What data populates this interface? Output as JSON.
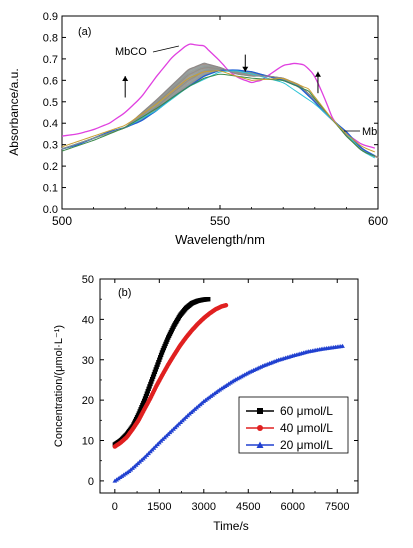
{
  "chart_data": [
    {
      "type": "line",
      "panel_label": "(a)",
      "xlabel": "Wavelength/nm",
      "ylabel": "Absorbance/a.u.",
      "xlim": [
        500,
        600
      ],
      "ylim": [
        0.0,
        0.9
      ],
      "x_ticks": [
        "500",
        "550",
        "600"
      ],
      "y_ticks": [
        "0.0",
        "0.1",
        "0.2",
        "0.3",
        "0.4",
        "0.5",
        "0.6",
        "0.7",
        "0.8",
        "0.9"
      ],
      "grid": false,
      "annotations": {
        "mbco_label": "MbCO",
        "mb_label": "Mb",
        "arrows": [
          {
            "x": 520,
            "y_from": 0.52,
            "y_to": 0.62,
            "direction": "up"
          },
          {
            "x": 558,
            "y_from": 0.72,
            "y_to": 0.64,
            "direction": "down"
          },
          {
            "x": 581,
            "y_from": 0.54,
            "y_to": 0.64,
            "direction": "up"
          }
        ]
      },
      "series": [
        {
          "name": "MbCO",
          "color": "#e040e0",
          "points": [
            [
              500,
              0.34
            ],
            [
              505,
              0.35
            ],
            [
              510,
              0.37
            ],
            [
              515,
              0.4
            ],
            [
              520,
              0.45
            ],
            [
              525,
              0.52
            ],
            [
              530,
              0.62
            ],
            [
              535,
              0.71
            ],
            [
              540,
              0.77
            ],
            [
              545,
              0.76
            ],
            [
              550,
              0.69
            ],
            [
              553,
              0.64
            ],
            [
              556,
              0.61
            ],
            [
              560,
              0.59
            ],
            [
              563,
              0.6
            ],
            [
              566,
              0.63
            ],
            [
              570,
              0.67
            ],
            [
              574,
              0.68
            ],
            [
              577,
              0.67
            ],
            [
              580,
              0.62
            ],
            [
              583,
              0.52
            ],
            [
              586,
              0.41
            ],
            [
              590,
              0.35
            ],
            [
              595,
              0.3
            ],
            [
              600,
              0.28
            ]
          ]
        },
        {
          "name": "Mb",
          "color": "#1e5fd6",
          "points": [
            [
              500,
              0.28
            ],
            [
              505,
              0.3
            ],
            [
              510,
              0.33
            ],
            [
              515,
              0.36
            ],
            [
              520,
              0.38
            ],
            [
              525,
              0.41
            ],
            [
              530,
              0.46
            ],
            [
              535,
              0.52
            ],
            [
              540,
              0.57
            ],
            [
              545,
              0.62
            ],
            [
              550,
              0.647
            ],
            [
              555,
              0.648
            ],
            [
              560,
              0.64
            ],
            [
              565,
              0.62
            ],
            [
              570,
              0.6
            ],
            [
              575,
              0.57
            ],
            [
              580,
              0.5
            ],
            [
              583,
              0.45
            ],
            [
              586,
              0.41
            ],
            [
              590,
              0.36
            ],
            [
              595,
              0.28
            ],
            [
              600,
              0.24
            ]
          ]
        },
        {
          "name": "",
          "color": "#2ec4d6",
          "points": [
            [
              500,
              0.28
            ],
            [
              510,
              0.33
            ],
            [
              520,
              0.38
            ],
            [
              530,
              0.46
            ],
            [
              540,
              0.57
            ],
            [
              550,
              0.64
            ],
            [
              555,
              0.645
            ],
            [
              560,
              0.63
            ],
            [
              570,
              0.59
            ],
            [
              580,
              0.49
            ],
            [
              586,
              0.41
            ],
            [
              590,
              0.35
            ],
            [
              595,
              0.27
            ],
            [
              600,
              0.23
            ]
          ]
        },
        {
          "name": "",
          "color": "#8a8a8a",
          "points": [
            [
              500,
              0.28
            ],
            [
              510,
              0.33
            ],
            [
              520,
              0.38
            ],
            [
              530,
              0.51
            ],
            [
              540,
              0.65
            ],
            [
              545,
              0.68
            ],
            [
              550,
              0.66
            ],
            [
              555,
              0.63
            ],
            [
              560,
              0.62
            ],
            [
              565,
              0.62
            ],
            [
              570,
              0.61
            ],
            [
              575,
              0.58
            ],
            [
              580,
              0.51
            ],
            [
              586,
              0.41
            ],
            [
              590,
              0.34
            ],
            [
              595,
              0.27
            ],
            [
              600,
              0.24
            ]
          ]
        },
        {
          "name": "",
          "color": "#3a8a4a",
          "points": [
            [
              500,
              0.27
            ],
            [
              510,
              0.32
            ],
            [
              520,
              0.38
            ],
            [
              530,
              0.47
            ],
            [
              540,
              0.57
            ],
            [
              545,
              0.61
            ],
            [
              550,
              0.63
            ],
            [
              555,
              0.62
            ],
            [
              560,
              0.61
            ],
            [
              570,
              0.6
            ],
            [
              578,
              0.55
            ],
            [
              586,
              0.41
            ],
            [
              590,
              0.34
            ],
            [
              595,
              0.27
            ],
            [
              600,
              0.24
            ]
          ]
        },
        {
          "name": "",
          "color": "#c9a032",
          "points": [
            [
              500,
              0.29
            ],
            [
              510,
              0.34
            ],
            [
              520,
              0.39
            ],
            [
              530,
              0.49
            ],
            [
              540,
              0.61
            ],
            [
              545,
              0.64
            ],
            [
              550,
              0.645
            ],
            [
              555,
              0.62
            ],
            [
              560,
              0.6
            ],
            [
              570,
              0.61
            ],
            [
              578,
              0.56
            ],
            [
              586,
              0.41
            ],
            [
              590,
              0.35
            ],
            [
              595,
              0.29
            ],
            [
              600,
              0.26
            ]
          ]
        }
      ]
    },
    {
      "type": "scatter",
      "panel_label": "(b)",
      "xlabel": "Time/s",
      "ylabel": "Concentration/(μmol·L⁻¹)",
      "xlim": [
        -500,
        8200
      ],
      "ylim": [
        -3,
        50
      ],
      "x_ticks": [
        "0",
        "1500",
        "3000",
        "4500",
        "6000",
        "7500"
      ],
      "y_ticks": [
        "0",
        "10",
        "20",
        "30",
        "40",
        "50"
      ],
      "grid": false,
      "legend_position": "lower-right",
      "series": [
        {
          "name": "60 μmol/L",
          "color": "#000000",
          "marker": "square",
          "points": [
            [
              0,
              9.0
            ],
            [
              200,
              10.0
            ],
            [
              400,
              11.5
            ],
            [
              600,
              13.5
            ],
            [
              800,
              16.5
            ],
            [
              1000,
              20.0
            ],
            [
              1200,
              24.0
            ],
            [
              1400,
              28.0
            ],
            [
              1600,
              32.0
            ],
            [
              1800,
              35.5
            ],
            [
              2000,
              38.5
            ],
            [
              2200,
              41.0
            ],
            [
              2400,
              42.8
            ],
            [
              2600,
              44.0
            ],
            [
              2800,
              44.6
            ],
            [
              3000,
              44.9
            ],
            [
              3150,
              45.0
            ]
          ]
        },
        {
          "name": "40 μmol/L",
          "color": "#e02020",
          "marker": "circle",
          "points": [
            [
              0,
              8.5
            ],
            [
              200,
              9.5
            ],
            [
              400,
              10.8
            ],
            [
              600,
              12.8
            ],
            [
              800,
              15.0
            ],
            [
              1000,
              17.8
            ],
            [
              1200,
              20.5
            ],
            [
              1400,
              23.5
            ],
            [
              1600,
              26.2
            ],
            [
              1800,
              28.8
            ],
            [
              2000,
              31.2
            ],
            [
              2200,
              33.5
            ],
            [
              2400,
              35.5
            ],
            [
              2600,
              37.3
            ],
            [
              2800,
              38.9
            ],
            [
              3000,
              40.3
            ],
            [
              3200,
              41.5
            ],
            [
              3400,
              42.5
            ],
            [
              3600,
              43.2
            ],
            [
              3750,
              43.5
            ]
          ]
        },
        {
          "name": "20 μmol/L",
          "color": "#2040d0",
          "marker": "triangle",
          "points": [
            [
              0,
              0.0
            ],
            [
              500,
              2.5
            ],
            [
              1000,
              5.8
            ],
            [
              1500,
              9.5
            ],
            [
              2000,
              13.0
            ],
            [
              2500,
              16.5
            ],
            [
              3000,
              19.7
            ],
            [
              3500,
              22.4
            ],
            [
              4000,
              24.8
            ],
            [
              4500,
              26.8
            ],
            [
              5000,
              28.5
            ],
            [
              5500,
              29.9
            ],
            [
              6000,
              31.0
            ],
            [
              6500,
              32.0
            ],
            [
              7000,
              32.7
            ],
            [
              7500,
              33.2
            ],
            [
              7700,
              33.4
            ]
          ]
        }
      ]
    }
  ]
}
